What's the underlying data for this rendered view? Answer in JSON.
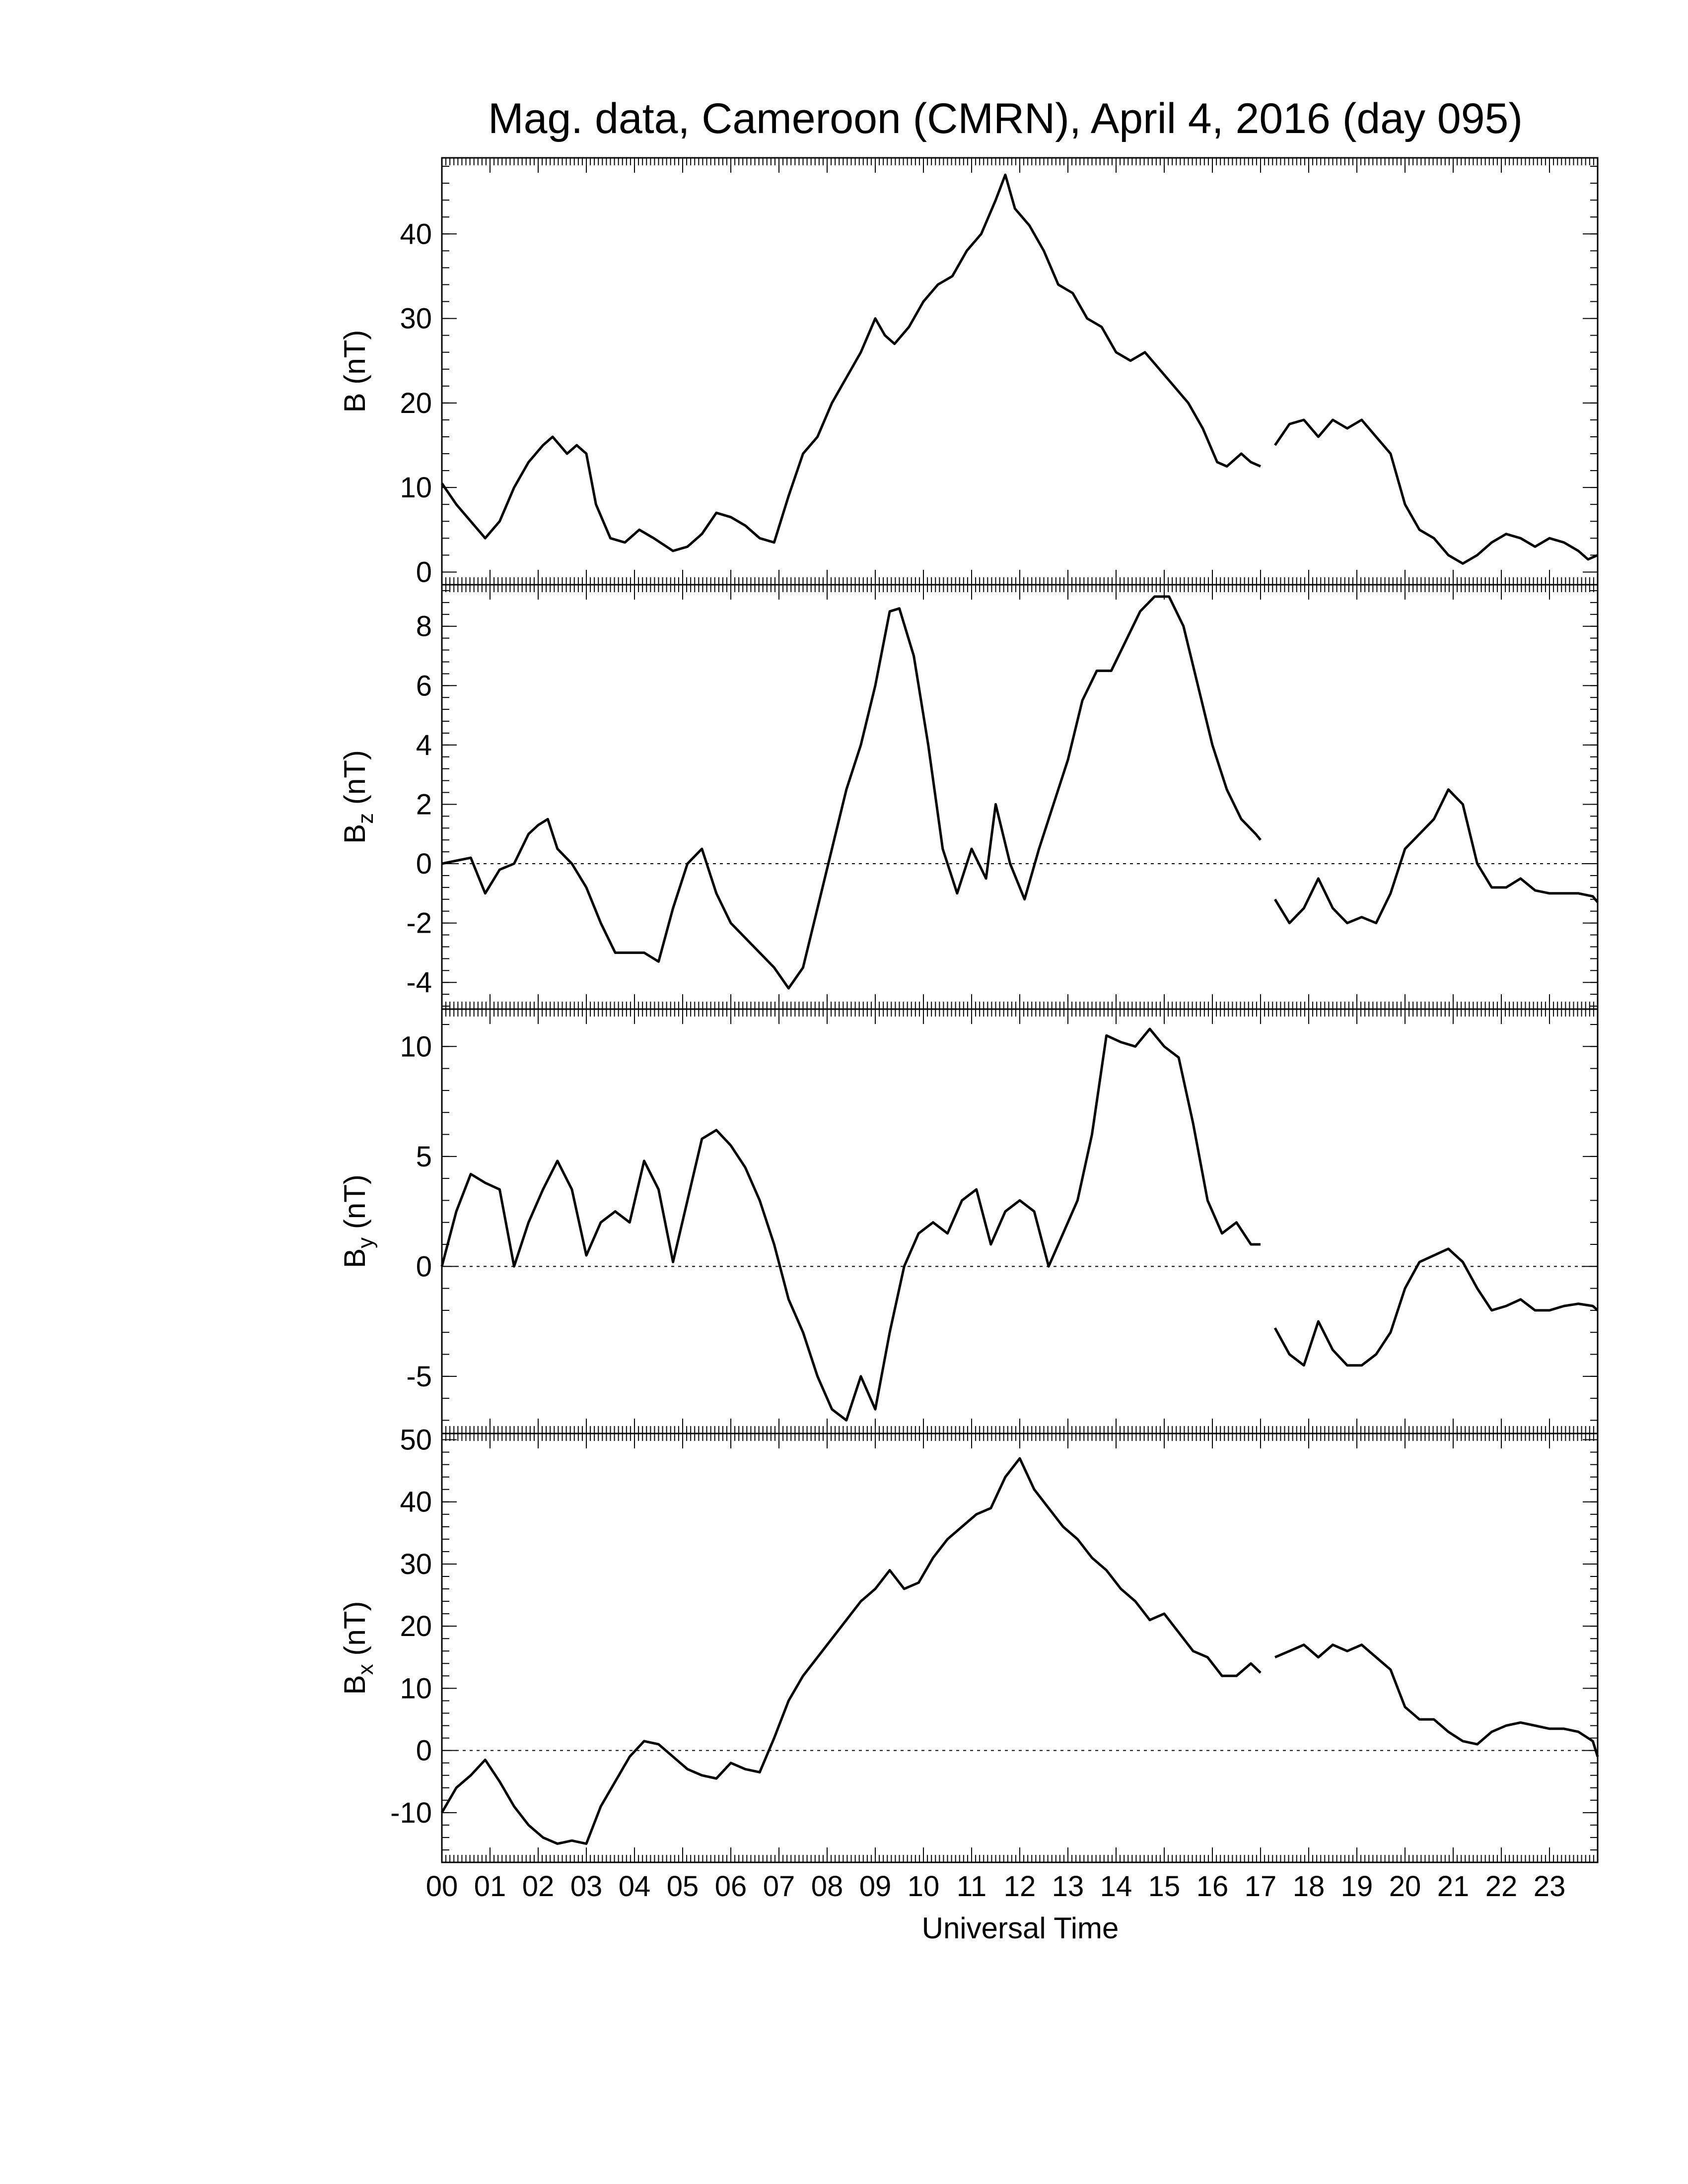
{
  "title": "Mag. data, Cameroon (CMRN), April 4, 2016 (day 095)",
  "xlabel": "Universal Time",
  "x_tick_labels": [
    "00",
    "01",
    "02",
    "03",
    "04",
    "05",
    "06",
    "07",
    "08",
    "09",
    "10",
    "11",
    "12",
    "13",
    "14",
    "15",
    "16",
    "17",
    "18",
    "19",
    "20",
    "21",
    "22",
    "23"
  ],
  "chart_data": [
    {
      "type": "line",
      "panel": "B",
      "ylabel": "B (nT)",
      "ylabel_main": "B",
      "ylabel_sub": "",
      "ylabel_unit": " (nT)",
      "ylim": [
        -1.5,
        49
      ],
      "yticks": [
        0,
        10,
        20,
        30,
        40
      ],
      "ytick_labels": [
        "0",
        "10",
        "20",
        "30",
        "40"
      ],
      "zero_line": false,
      "x_unit": "hours UT",
      "segments": [
        {
          "x": [
            0,
            0.3,
            0.6,
            0.9,
            1.2,
            1.5,
            1.8,
            2.1,
            2.3,
            2.6,
            2.8,
            3.0,
            3.2,
            3.5,
            3.8,
            4.1,
            4.4,
            4.8,
            5.1,
            5.4,
            5.7,
            6.0,
            6.3,
            6.6,
            6.9,
            7.2,
            7.5,
            7.8,
            8.1,
            8.4,
            8.7,
            9.0,
            9.2,
            9.4,
            9.7,
            10.0,
            10.3,
            10.6,
            10.9,
            11.2,
            11.5,
            11.7,
            11.9,
            12.2,
            12.5,
            12.8,
            13.1,
            13.4,
            13.7,
            14.0,
            14.3,
            14.6,
            14.9,
            15.2,
            15.5,
            15.8,
            16.1,
            16.3,
            16.6,
            16.8,
            17.0
          ],
          "y": [
            10.5,
            8,
            6,
            4,
            6,
            10,
            13,
            15,
            16,
            14,
            15,
            14,
            8,
            4,
            3.5,
            5,
            4,
            2.5,
            3,
            4.5,
            7,
            6.5,
            5.5,
            4,
            3.5,
            9,
            14,
            16,
            20,
            23,
            26,
            30,
            28,
            27,
            29,
            32,
            34,
            35,
            38,
            40,
            44,
            47,
            43,
            41,
            38,
            34,
            33,
            30,
            29,
            26,
            25,
            26,
            24,
            22,
            20,
            17,
            13,
            12.5,
            14,
            13,
            12.5
          ]
        },
        {
          "x": [
            17.3,
            17.6,
            17.9,
            18.2,
            18.5,
            18.8,
            19.1,
            19.4,
            19.7,
            20.0,
            20.3,
            20.6,
            20.9,
            21.2,
            21.5,
            21.8,
            22.1,
            22.4,
            22.7,
            23.0,
            23.3,
            23.6,
            23.8,
            24.0
          ],
          "y": [
            15,
            17.5,
            18,
            16,
            18,
            17,
            18,
            16,
            14,
            8,
            5,
            4,
            2,
            1,
            2,
            3.5,
            4.5,
            4,
            3,
            4,
            3.5,
            2.5,
            1.5,
            2
          ]
        }
      ]
    },
    {
      "type": "line",
      "panel": "Bz",
      "ylabel": "Bz (nT)",
      "ylabel_main": "B",
      "ylabel_sub": "z",
      "ylabel_unit": " (nT)",
      "ylim": [
        -4.9,
        9.4
      ],
      "yticks": [
        -4,
        -2,
        0,
        2,
        4,
        6,
        8
      ],
      "ytick_labels": [
        "-4",
        "-2",
        "0",
        "2",
        "4",
        "6",
        "8"
      ],
      "zero_line": true,
      "x_unit": "hours UT",
      "segments": [
        {
          "x": [
            0,
            0.3,
            0.6,
            0.9,
            1.2,
            1.5,
            1.8,
            2.0,
            2.2,
            2.4,
            2.7,
            3.0,
            3.3,
            3.6,
            3.9,
            4.2,
            4.5,
            4.8,
            5.1,
            5.4,
            5.7,
            6.0,
            6.3,
            6.6,
            6.9,
            7.2,
            7.5,
            7.8,
            8.1,
            8.4,
            8.7,
            9.0,
            9.3,
            9.5,
            9.8,
            10.1,
            10.4,
            10.7,
            11.0,
            11.3,
            11.5,
            11.8,
            12.1,
            12.4,
            12.7,
            13.0,
            13.3,
            13.6,
            13.9,
            14.2,
            14.5,
            14.8,
            15.1,
            15.4,
            15.7,
            16.0,
            16.3,
            16.6,
            16.9,
            17.0
          ],
          "y": [
            0,
            0.1,
            0.2,
            -1,
            -0.2,
            0,
            1,
            1.3,
            1.5,
            0.5,
            0,
            -0.8,
            -2,
            -3,
            -3,
            -3,
            -3.3,
            -1.5,
            0,
            0.5,
            -1,
            -2,
            -2.5,
            -3,
            -3.5,
            -4.2,
            -3.5,
            -1.5,
            0.5,
            2.5,
            4,
            6,
            8.5,
            8.6,
            7,
            4,
            0.5,
            -1,
            0.5,
            -0.5,
            2,
            0,
            -1.2,
            0.5,
            2,
            3.5,
            5.5,
            6.5,
            6.5,
            7.5,
            8.5,
            9,
            9,
            8,
            6,
            4,
            2.5,
            1.5,
            1,
            0.8
          ]
        },
        {
          "x": [
            17.3,
            17.6,
            17.9,
            18.2,
            18.5,
            18.8,
            19.1,
            19.4,
            19.7,
            20.0,
            20.3,
            20.6,
            20.9,
            21.2,
            21.5,
            21.8,
            22.1,
            22.4,
            22.7,
            23.0,
            23.3,
            23.6,
            23.9,
            24.0
          ],
          "y": [
            -1.2,
            -2,
            -1.5,
            -0.5,
            -1.5,
            -2,
            -1.8,
            -2,
            -1,
            0.5,
            1,
            1.5,
            2.5,
            2,
            0,
            -0.8,
            -0.8,
            -0.5,
            -0.9,
            -1,
            -1,
            -1,
            -1.1,
            -1.3
          ]
        }
      ]
    },
    {
      "type": "line",
      "panel": "By",
      "ylabel": "By (nT)",
      "ylabel_main": "B",
      "ylabel_sub": "y",
      "ylabel_unit": " (nT)",
      "ylim": [
        -7.6,
        11.7
      ],
      "yticks": [
        -5,
        0,
        5,
        10
      ],
      "ytick_labels": [
        "-5",
        "0",
        "5",
        "10"
      ],
      "zero_line": true,
      "x_unit": "hours UT",
      "segments": [
        {
          "x": [
            0,
            0.3,
            0.6,
            0.9,
            1.2,
            1.5,
            1.8,
            2.1,
            2.4,
            2.7,
            3.0,
            3.3,
            3.6,
            3.9,
            4.2,
            4.5,
            4.8,
            5.1,
            5.4,
            5.7,
            6.0,
            6.3,
            6.6,
            6.9,
            7.2,
            7.5,
            7.8,
            8.1,
            8.4,
            8.7,
            9.0,
            9.3,
            9.6,
            9.9,
            10.2,
            10.5,
            10.8,
            11.1,
            11.4,
            11.7,
            12.0,
            12.3,
            12.6,
            12.9,
            13.2,
            13.5,
            13.8,
            14.1,
            14.4,
            14.7,
            15.0,
            15.3,
            15.6,
            15.9,
            16.2,
            16.5,
            16.8,
            17.0
          ],
          "y": [
            0,
            2.5,
            4.2,
            3.8,
            3.5,
            0,
            2,
            3.5,
            4.8,
            3.5,
            0.5,
            2,
            2.5,
            2,
            4.8,
            3.5,
            0.2,
            3,
            5.8,
            6.2,
            5.5,
            4.5,
            3,
            1,
            -1.5,
            -3,
            -5,
            -6.5,
            -7,
            -5,
            -6.5,
            -3,
            0,
            1.5,
            2,
            1.5,
            3,
            3.5,
            1,
            2.5,
            3,
            2.5,
            0,
            1.5,
            3,
            6,
            10.5,
            10.2,
            10,
            10.8,
            10,
            9.5,
            6.5,
            3,
            1.5,
            2,
            1,
            1
          ]
        },
        {
          "x": [
            17.3,
            17.6,
            17.9,
            18.2,
            18.5,
            18.8,
            19.1,
            19.4,
            19.7,
            20.0,
            20.3,
            20.6,
            20.9,
            21.2,
            21.5,
            21.8,
            22.1,
            22.4,
            22.7,
            23.0,
            23.3,
            23.6,
            23.9,
            24.0
          ],
          "y": [
            -2.8,
            -4,
            -4.5,
            -2.5,
            -3.8,
            -4.5,
            -4.5,
            -4,
            -3,
            -1,
            0.2,
            0.5,
            0.8,
            0.2,
            -1,
            -2,
            -1.8,
            -1.5,
            -2,
            -2,
            -1.8,
            -1.7,
            -1.8,
            -2
          ]
        }
      ]
    },
    {
      "type": "line",
      "panel": "Bx",
      "ylabel": "Bx (nT)",
      "ylabel_main": "B",
      "ylabel_sub": "x",
      "ylabel_unit": " (nT)",
      "ylim": [
        -18,
        51
      ],
      "yticks": [
        -10,
        0,
        10,
        20,
        30,
        40,
        50
      ],
      "ytick_labels": [
        "-10",
        "0",
        "10",
        "20",
        "30",
        "40",
        "50"
      ],
      "zero_line": true,
      "x_unit": "hours UT",
      "segments": [
        {
          "x": [
            0,
            0.3,
            0.6,
            0.9,
            1.2,
            1.5,
            1.8,
            2.1,
            2.4,
            2.7,
            3.0,
            3.3,
            3.6,
            3.9,
            4.2,
            4.5,
            4.8,
            5.1,
            5.4,
            5.7,
            6.0,
            6.3,
            6.6,
            6.9,
            7.2,
            7.5,
            7.8,
            8.1,
            8.4,
            8.7,
            9.0,
            9.3,
            9.6,
            9.9,
            10.2,
            10.5,
            10.8,
            11.1,
            11.4,
            11.7,
            12.0,
            12.3,
            12.6,
            12.9,
            13.2,
            13.5,
            13.8,
            14.1,
            14.4,
            14.7,
            15.0,
            15.3,
            15.6,
            15.9,
            16.2,
            16.5,
            16.8,
            17.0
          ],
          "y": [
            -10,
            -6,
            -4,
            -1.5,
            -5,
            -9,
            -12,
            -14,
            -15,
            -14.5,
            -15,
            -9,
            -5,
            -1,
            1.5,
            1,
            -1,
            -3,
            -4,
            -4.5,
            -2,
            -3,
            -3.5,
            2,
            8,
            12,
            15,
            18,
            21,
            24,
            26,
            29,
            26,
            27,
            31,
            34,
            36,
            38,
            39,
            44,
            47,
            42,
            39,
            36,
            34,
            31,
            29,
            26,
            24,
            21,
            22,
            19,
            16,
            15,
            12,
            12,
            14,
            12.5
          ]
        },
        {
          "x": [
            17.3,
            17.6,
            17.9,
            18.2,
            18.5,
            18.8,
            19.1,
            19.4,
            19.7,
            20.0,
            20.3,
            20.6,
            20.9,
            21.2,
            21.5,
            21.8,
            22.1,
            22.4,
            22.7,
            23.0,
            23.3,
            23.6,
            23.9,
            24.0
          ],
          "y": [
            15,
            16,
            17,
            15,
            17,
            16,
            17,
            15,
            13,
            7,
            5,
            5,
            3,
            1.5,
            1,
            3,
            4,
            4.5,
            4,
            3.5,
            3.5,
            3,
            1.5,
            -1
          ]
        }
      ]
    }
  ]
}
